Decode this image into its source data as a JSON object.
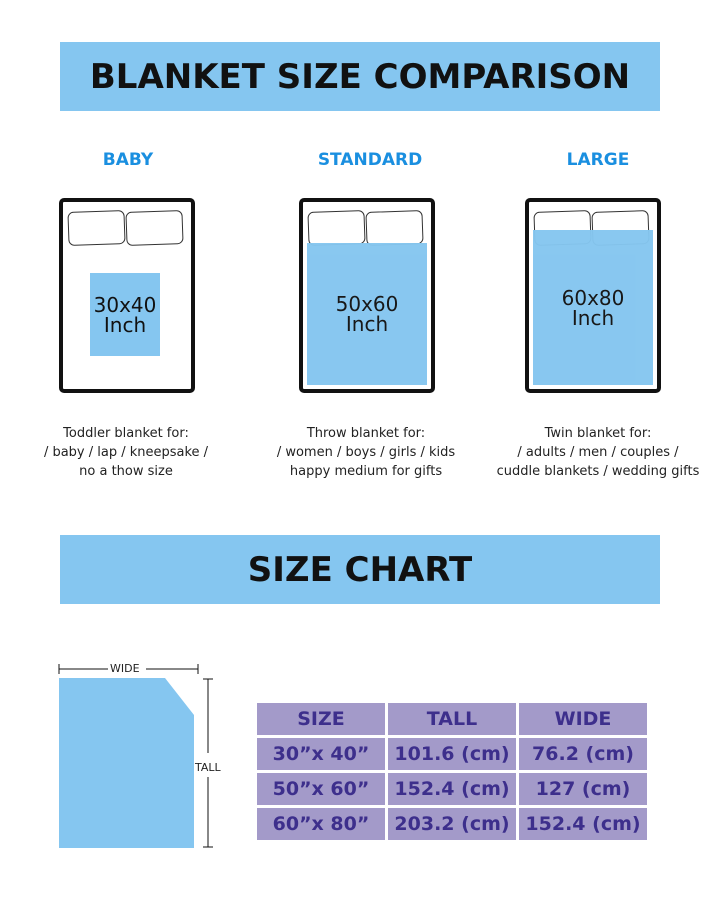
{
  "title": "BLANKET SIZE COMPARISON",
  "colors": {
    "banner": "#85c6f0",
    "label": "#1a8fe0",
    "table_bg": "#a39ac9",
    "table_text": "#3d2f8c"
  },
  "sizes": [
    {
      "label": "BABY",
      "dims": "30x40",
      "unit": "Inch",
      "desc": [
        "Toddler blanket for:",
        "/ baby / lap / kneepsake /",
        "no a thow size"
      ]
    },
    {
      "label": "STANDARD",
      "dims": "50x60",
      "unit": "Inch",
      "desc": [
        "Throw blanket for:",
        "/ women / boys / girls / kids",
        "happy medium for gifts"
      ]
    },
    {
      "label": "LARGE",
      "dims": "60x80",
      "unit": "Inch",
      "desc": [
        "Twin blanket for:",
        "/ adults / men / couples /",
        "cuddle blankets / wedding gifts"
      ]
    }
  ],
  "chart_title": "SIZE CHART",
  "diagram": {
    "wide_label": "WIDE",
    "tall_label": "TALL"
  },
  "table": {
    "headers": [
      "SIZE",
      "TALL",
      "WIDE"
    ],
    "rows": [
      [
        "30”x 40”",
        "101.6 (cm)",
        "76.2 (cm)"
      ],
      [
        "50”x 60”",
        "152.4 (cm)",
        "127 (cm)"
      ],
      [
        "60”x 80”",
        "203.2 (cm)",
        "152.4 (cm)"
      ]
    ]
  }
}
